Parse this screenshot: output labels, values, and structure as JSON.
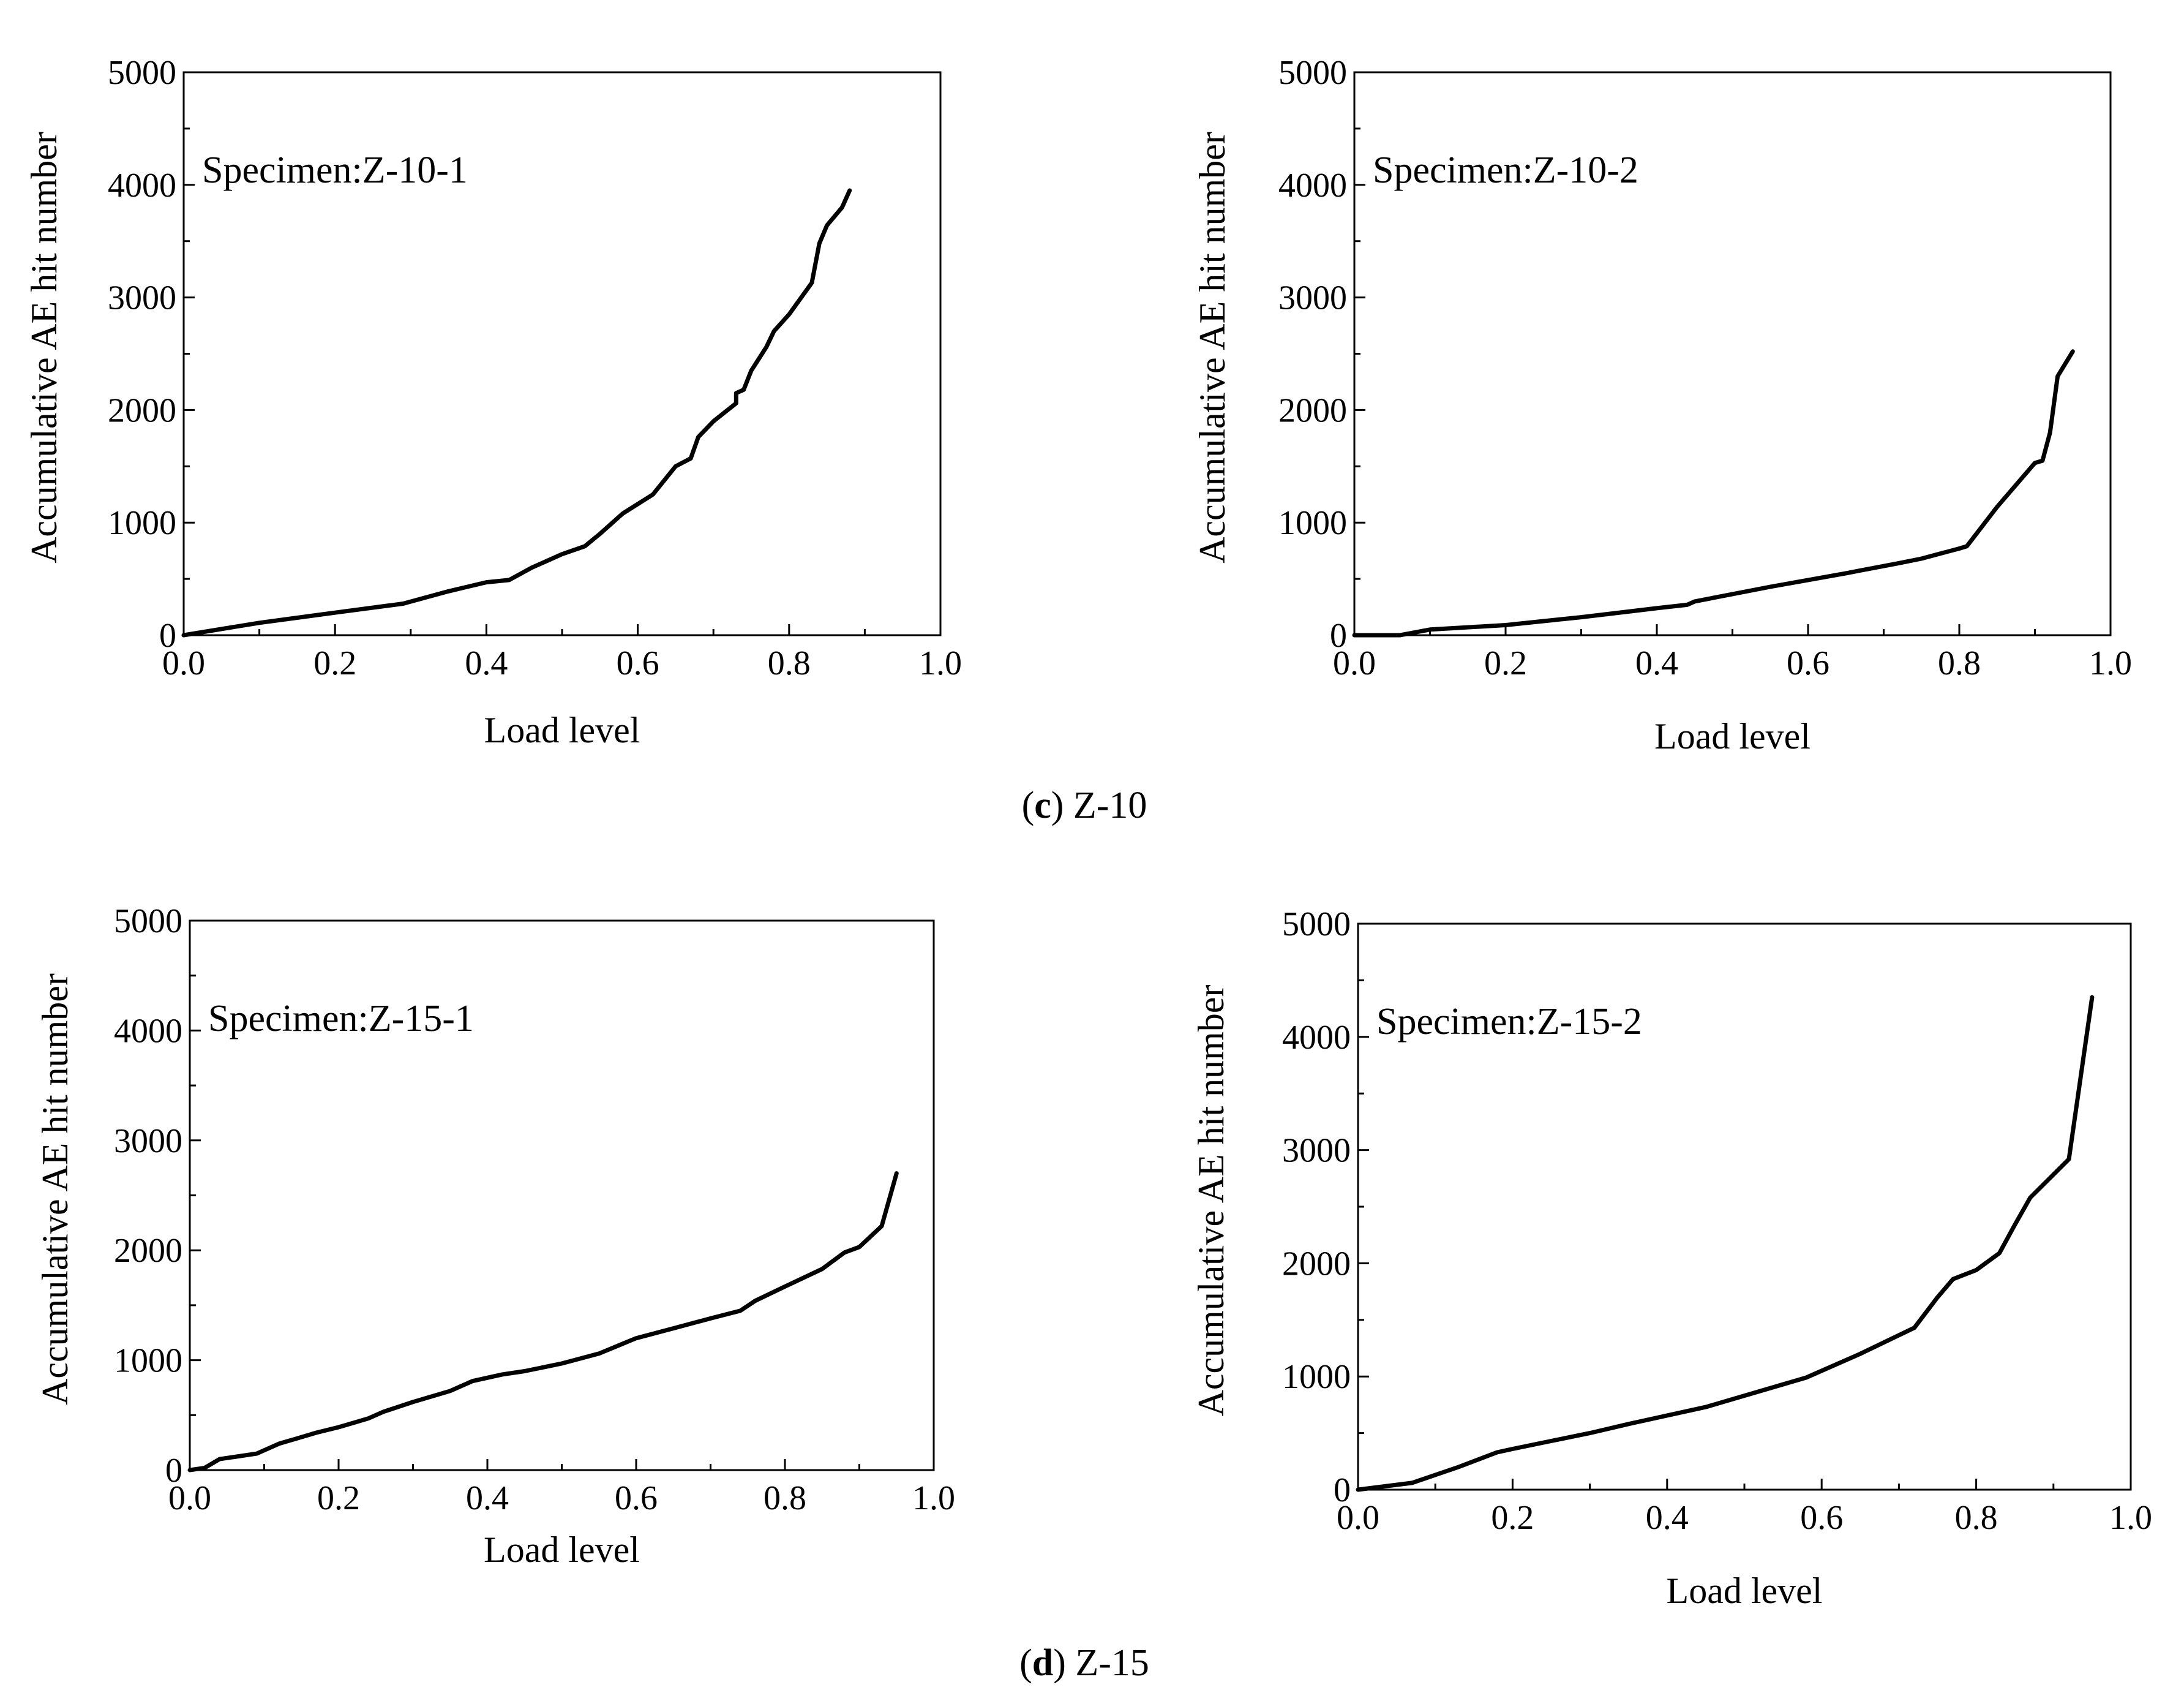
{
  "figure": {
    "captions": [
      {
        "letter": "c",
        "label": "Z-10"
      },
      {
        "letter": "d",
        "label": "Z-15"
      }
    ]
  },
  "chart_data": [
    {
      "type": "line",
      "annotation": "Specimen:Z-10-1",
      "xlabel": "Load level",
      "ylabel": "Accumulative AE hit number",
      "xlim": [
        0,
        1.0
      ],
      "ylim": [
        0,
        5000
      ],
      "xticks": [
        "0.0",
        "0.2",
        "0.4",
        "0.6",
        "0.8",
        "1.0"
      ],
      "yticks": [
        "0",
        "1000",
        "2000",
        "3000",
        "4000",
        "5000"
      ],
      "series": [
        {
          "name": "Z-10-1",
          "x": [
            0.0,
            0.1,
            0.2,
            0.29,
            0.35,
            0.4,
            0.43,
            0.46,
            0.5,
            0.53,
            0.55,
            0.58,
            0.62,
            0.65,
            0.67,
            0.68,
            0.7,
            0.73,
            0.73,
            0.74,
            0.75,
            0.77,
            0.78,
            0.8,
            0.83,
            0.84,
            0.85,
            0.87,
            0.88
          ],
          "y": [
            0,
            110,
            200,
            280,
            390,
            470,
            490,
            600,
            720,
            790,
            900,
            1080,
            1250,
            1500,
            1570,
            1760,
            1900,
            2060,
            2150,
            2180,
            2350,
            2560,
            2700,
            2850,
            3130,
            3480,
            3640,
            3800,
            3950
          ]
        }
      ]
    },
    {
      "type": "line",
      "annotation": "Specimen:Z-10-2",
      "xlabel": "Load level",
      "ylabel": "Accumulative AE hit number",
      "xlim": [
        0,
        1.0
      ],
      "ylim": [
        0,
        5000
      ],
      "xticks": [
        "0.0",
        "0.2",
        "0.4",
        "0.6",
        "0.8",
        "1.0"
      ],
      "yticks": [
        "0",
        "1000",
        "2000",
        "3000",
        "4000",
        "5000"
      ],
      "series": [
        {
          "name": "Z-10-2",
          "x": [
            0.0,
            0.06,
            0.1,
            0.2,
            0.3,
            0.4,
            0.44,
            0.45,
            0.55,
            0.65,
            0.72,
            0.75,
            0.8,
            0.81,
            0.85,
            0.9,
            0.91,
            0.92,
            0.93,
            0.95
          ],
          "y": [
            0,
            0,
            50,
            90,
            160,
            240,
            270,
            300,
            430,
            550,
            640,
            680,
            770,
            790,
            1140,
            1530,
            1550,
            1800,
            2300,
            2520
          ]
        }
      ]
    },
    {
      "type": "line",
      "annotation": "Specimen:Z-15-1",
      "xlabel": "Load level",
      "ylabel": "Accumulative AE hit number",
      "xlim": [
        0,
        1.0
      ],
      "ylim": [
        0,
        5000
      ],
      "xticks": [
        "0.0",
        "0.2",
        "0.4",
        "0.6",
        "0.8",
        "1.0"
      ],
      "yticks": [
        "0",
        "1000",
        "2000",
        "3000",
        "4000",
        "5000"
      ],
      "series": [
        {
          "name": "Z-15-1",
          "x": [
            0.0,
            0.02,
            0.04,
            0.09,
            0.12,
            0.14,
            0.17,
            0.2,
            0.22,
            0.24,
            0.26,
            0.3,
            0.35,
            0.38,
            0.42,
            0.45,
            0.5,
            0.55,
            0.6,
            0.65,
            0.7,
            0.74,
            0.76,
            0.8,
            0.85,
            0.88,
            0.9,
            0.93,
            0.95
          ],
          "y": [
            0,
            20,
            100,
            150,
            240,
            280,
            340,
            390,
            430,
            470,
            530,
            620,
            720,
            810,
            870,
            900,
            970,
            1060,
            1200,
            1290,
            1380,
            1450,
            1540,
            1670,
            1830,
            1980,
            2030,
            2220,
            2700
          ]
        }
      ]
    },
    {
      "type": "line",
      "annotation": "Specimen:Z-15-2",
      "xlabel": "Load level",
      "ylabel": "Accumulative AE hit number",
      "xlim": [
        0,
        1.0
      ],
      "ylim": [
        0,
        5000
      ],
      "xticks": [
        "0.0",
        "0.2",
        "0.4",
        "0.6",
        "0.8",
        "1.0"
      ],
      "yticks": [
        "0",
        "1000",
        "2000",
        "3000",
        "4000",
        "5000"
      ],
      "series": [
        {
          "name": "Z-15-2",
          "x": [
            0.0,
            0.07,
            0.13,
            0.18,
            0.2,
            0.25,
            0.3,
            0.35,
            0.45,
            0.58,
            0.65,
            0.72,
            0.75,
            0.77,
            0.8,
            0.83,
            0.85,
            0.87,
            0.92,
            0.95
          ],
          "y": [
            0,
            60,
            200,
            330,
            360,
            430,
            500,
            580,
            730,
            990,
            1200,
            1430,
            1700,
            1860,
            1940,
            2090,
            2340,
            2580,
            2920,
            4350
          ]
        }
      ]
    }
  ]
}
